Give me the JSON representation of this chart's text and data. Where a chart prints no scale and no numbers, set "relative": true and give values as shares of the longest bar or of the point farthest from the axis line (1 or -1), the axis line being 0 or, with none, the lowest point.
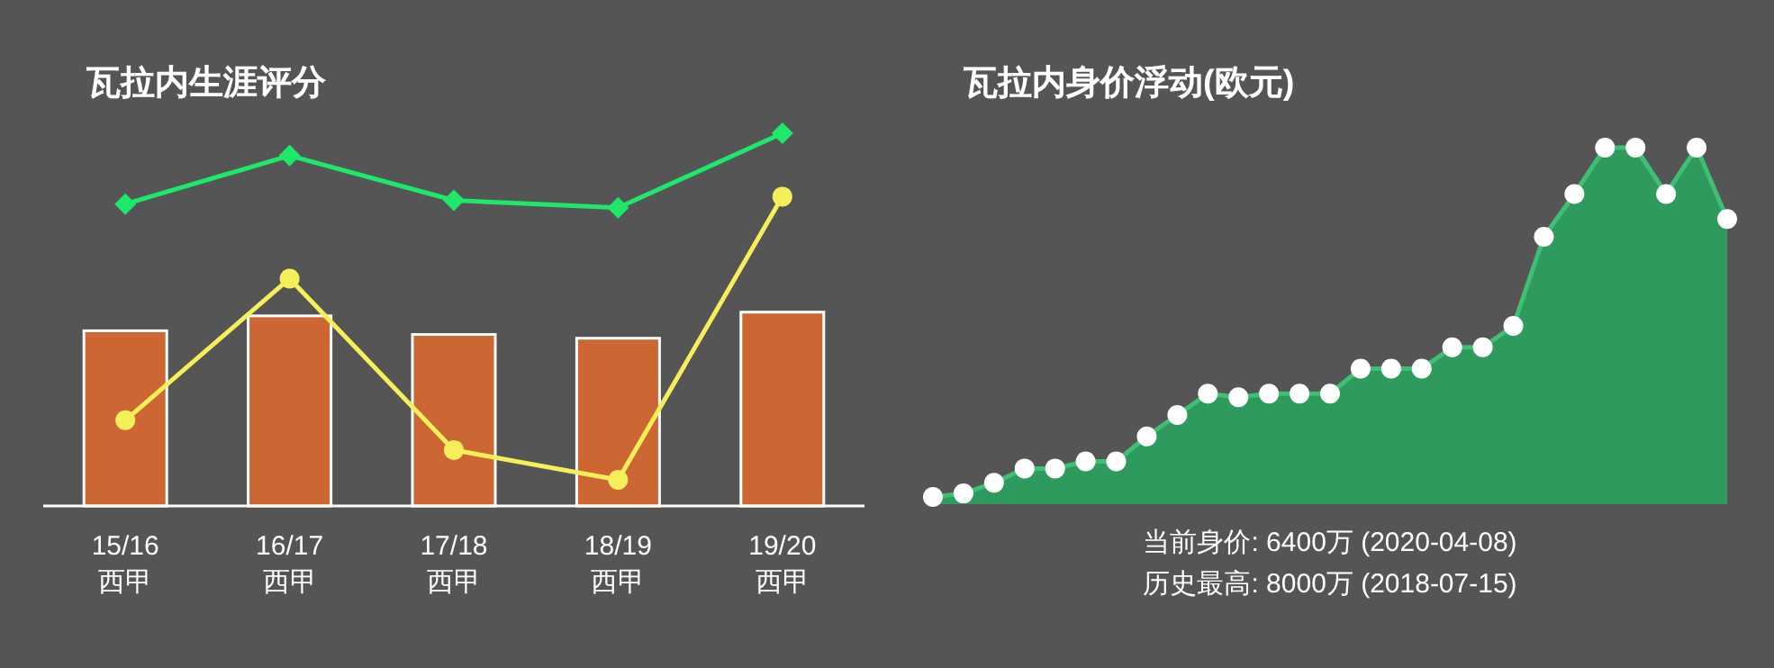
{
  "chart_data": [
    {
      "type": "bar",
      "title": "瓦拉内生涯评分",
      "relative": true,
      "categories": [
        "15/16\n西甲",
        "16/17\n西甲",
        "17/18\n西甲",
        "18/19\n西甲",
        "19/20\n西甲"
      ],
      "series": [
        {
          "type": "bar",
          "color": "#cc6633",
          "values": [
            0.47,
            0.51,
            0.46,
            0.45,
            0.52
          ]
        },
        {
          "type": "line",
          "color": "#1de86a",
          "marker": "diamond",
          "values": [
            0.81,
            0.94,
            0.82,
            0.8,
            1
          ]
        },
        {
          "type": "line",
          "color": "#f5f05a",
          "marker": "circle",
          "values": [
            0.23,
            0.61,
            0.15,
            0.07,
            0.83
          ]
        }
      ]
    },
    {
      "type": "area",
      "title": "瓦拉内身价浮动(欧元)",
      "relative": true,
      "color": "#2e9a5e",
      "marker": "circle",
      "categories": [
        null,
        null,
        null,
        null,
        null,
        null,
        null,
        null,
        null,
        null,
        null,
        null,
        null,
        null,
        null,
        null,
        null,
        null,
        null,
        null,
        null,
        null,
        null,
        null,
        null,
        null,
        null
      ],
      "values": [
        0.02,
        0.03,
        0.06,
        0.1,
        0.1,
        0.12,
        0.12,
        0.19,
        0.25,
        0.31,
        0.3,
        0.31,
        0.31,
        0.31,
        0.38,
        0.38,
        0.38,
        0.44,
        0.44,
        0.5,
        0.75,
        0.87,
        1,
        1,
        0.87,
        1,
        0.8
      ],
      "annotations": [
        "当前身价: 6400万 (2020-04-08)",
        "历史最高: 8000万 (2018-07-15)"
      ]
    }
  ]
}
